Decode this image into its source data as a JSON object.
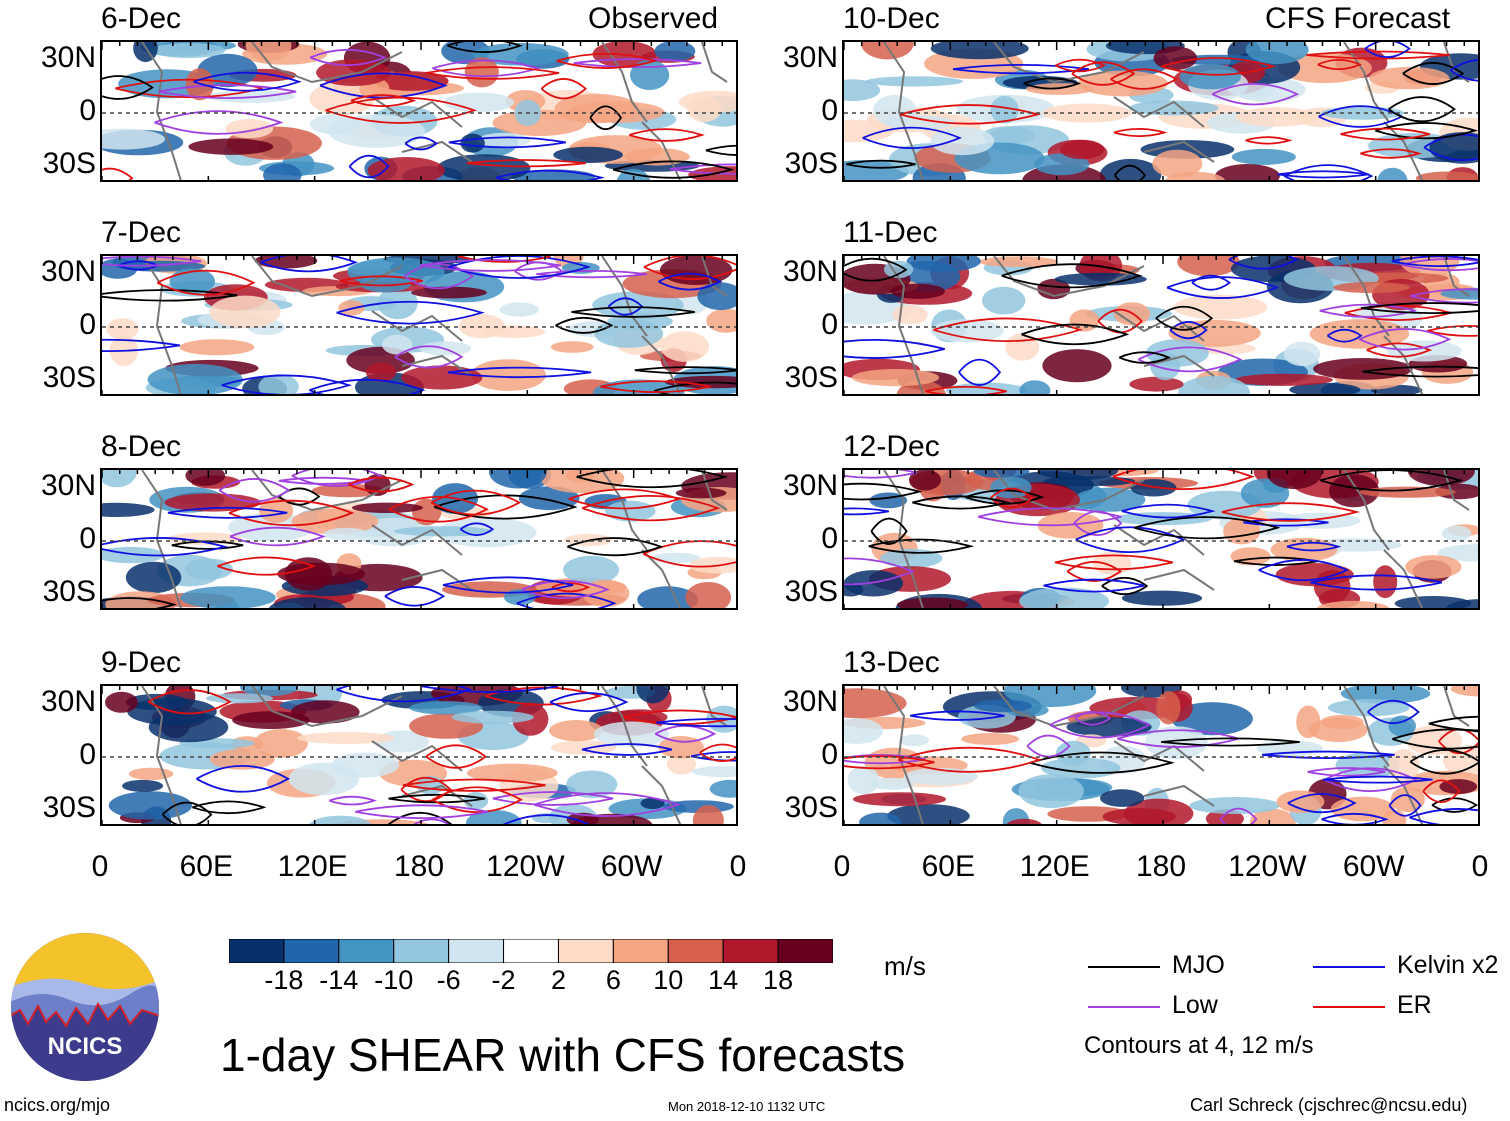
{
  "figure": {
    "title": "1-day SHEAR with CFS forecasts",
    "column_labels": {
      "observed": "Observed",
      "forecast": "CFS Forecast"
    },
    "units": "m/s",
    "footer_left": "ncics.org/mjo",
    "footer_center": "Mon 2018-12-10 1132 UTC",
    "footer_right": "Carl Schreck (cjschrec@ncsu.edu)",
    "logo_text": "NCICS"
  },
  "chart_data": {
    "type": "heatmap",
    "variable": "1-day wind shear anomaly",
    "panels": [
      {
        "date": "6-Dec",
        "kind": "observed"
      },
      {
        "date": "7-Dec",
        "kind": "observed"
      },
      {
        "date": "8-Dec",
        "kind": "observed"
      },
      {
        "date": "9-Dec",
        "kind": "observed"
      },
      {
        "date": "10-Dec",
        "kind": "forecast"
      },
      {
        "date": "11-Dec",
        "kind": "forecast"
      },
      {
        "date": "12-Dec",
        "kind": "forecast"
      },
      {
        "date": "13-Dec",
        "kind": "forecast"
      }
    ],
    "y_ticks": [
      "30N",
      "0",
      "30S"
    ],
    "x_ticks": [
      "0",
      "60E",
      "120E",
      "180",
      "120W",
      "60W",
      "0"
    ],
    "lat_range": [
      -40,
      40
    ],
    "lon_range": [
      0,
      360
    ],
    "colorbar": {
      "levels": [
        "-18",
        "-14",
        "-10",
        "-6",
        "-2",
        "2",
        "6",
        "10",
        "14",
        "18"
      ],
      "colors": [
        "#08306b",
        "#2166ac",
        "#4393c3",
        "#92c5de",
        "#d1e5f0",
        "#ffffff",
        "#fddbc7",
        "#f4a582",
        "#d6604d",
        "#b2182b",
        "#67001f"
      ]
    },
    "legend": [
      {
        "name": "MJO",
        "color": "#000000"
      },
      {
        "name": "Kelvin x2",
        "color": "#1010e0"
      },
      {
        "name": "Low",
        "color": "#a040e0"
      },
      {
        "name": "ER",
        "color": "#e01010"
      }
    ],
    "contour_note": "Contours at 4, 12 m/s"
  }
}
